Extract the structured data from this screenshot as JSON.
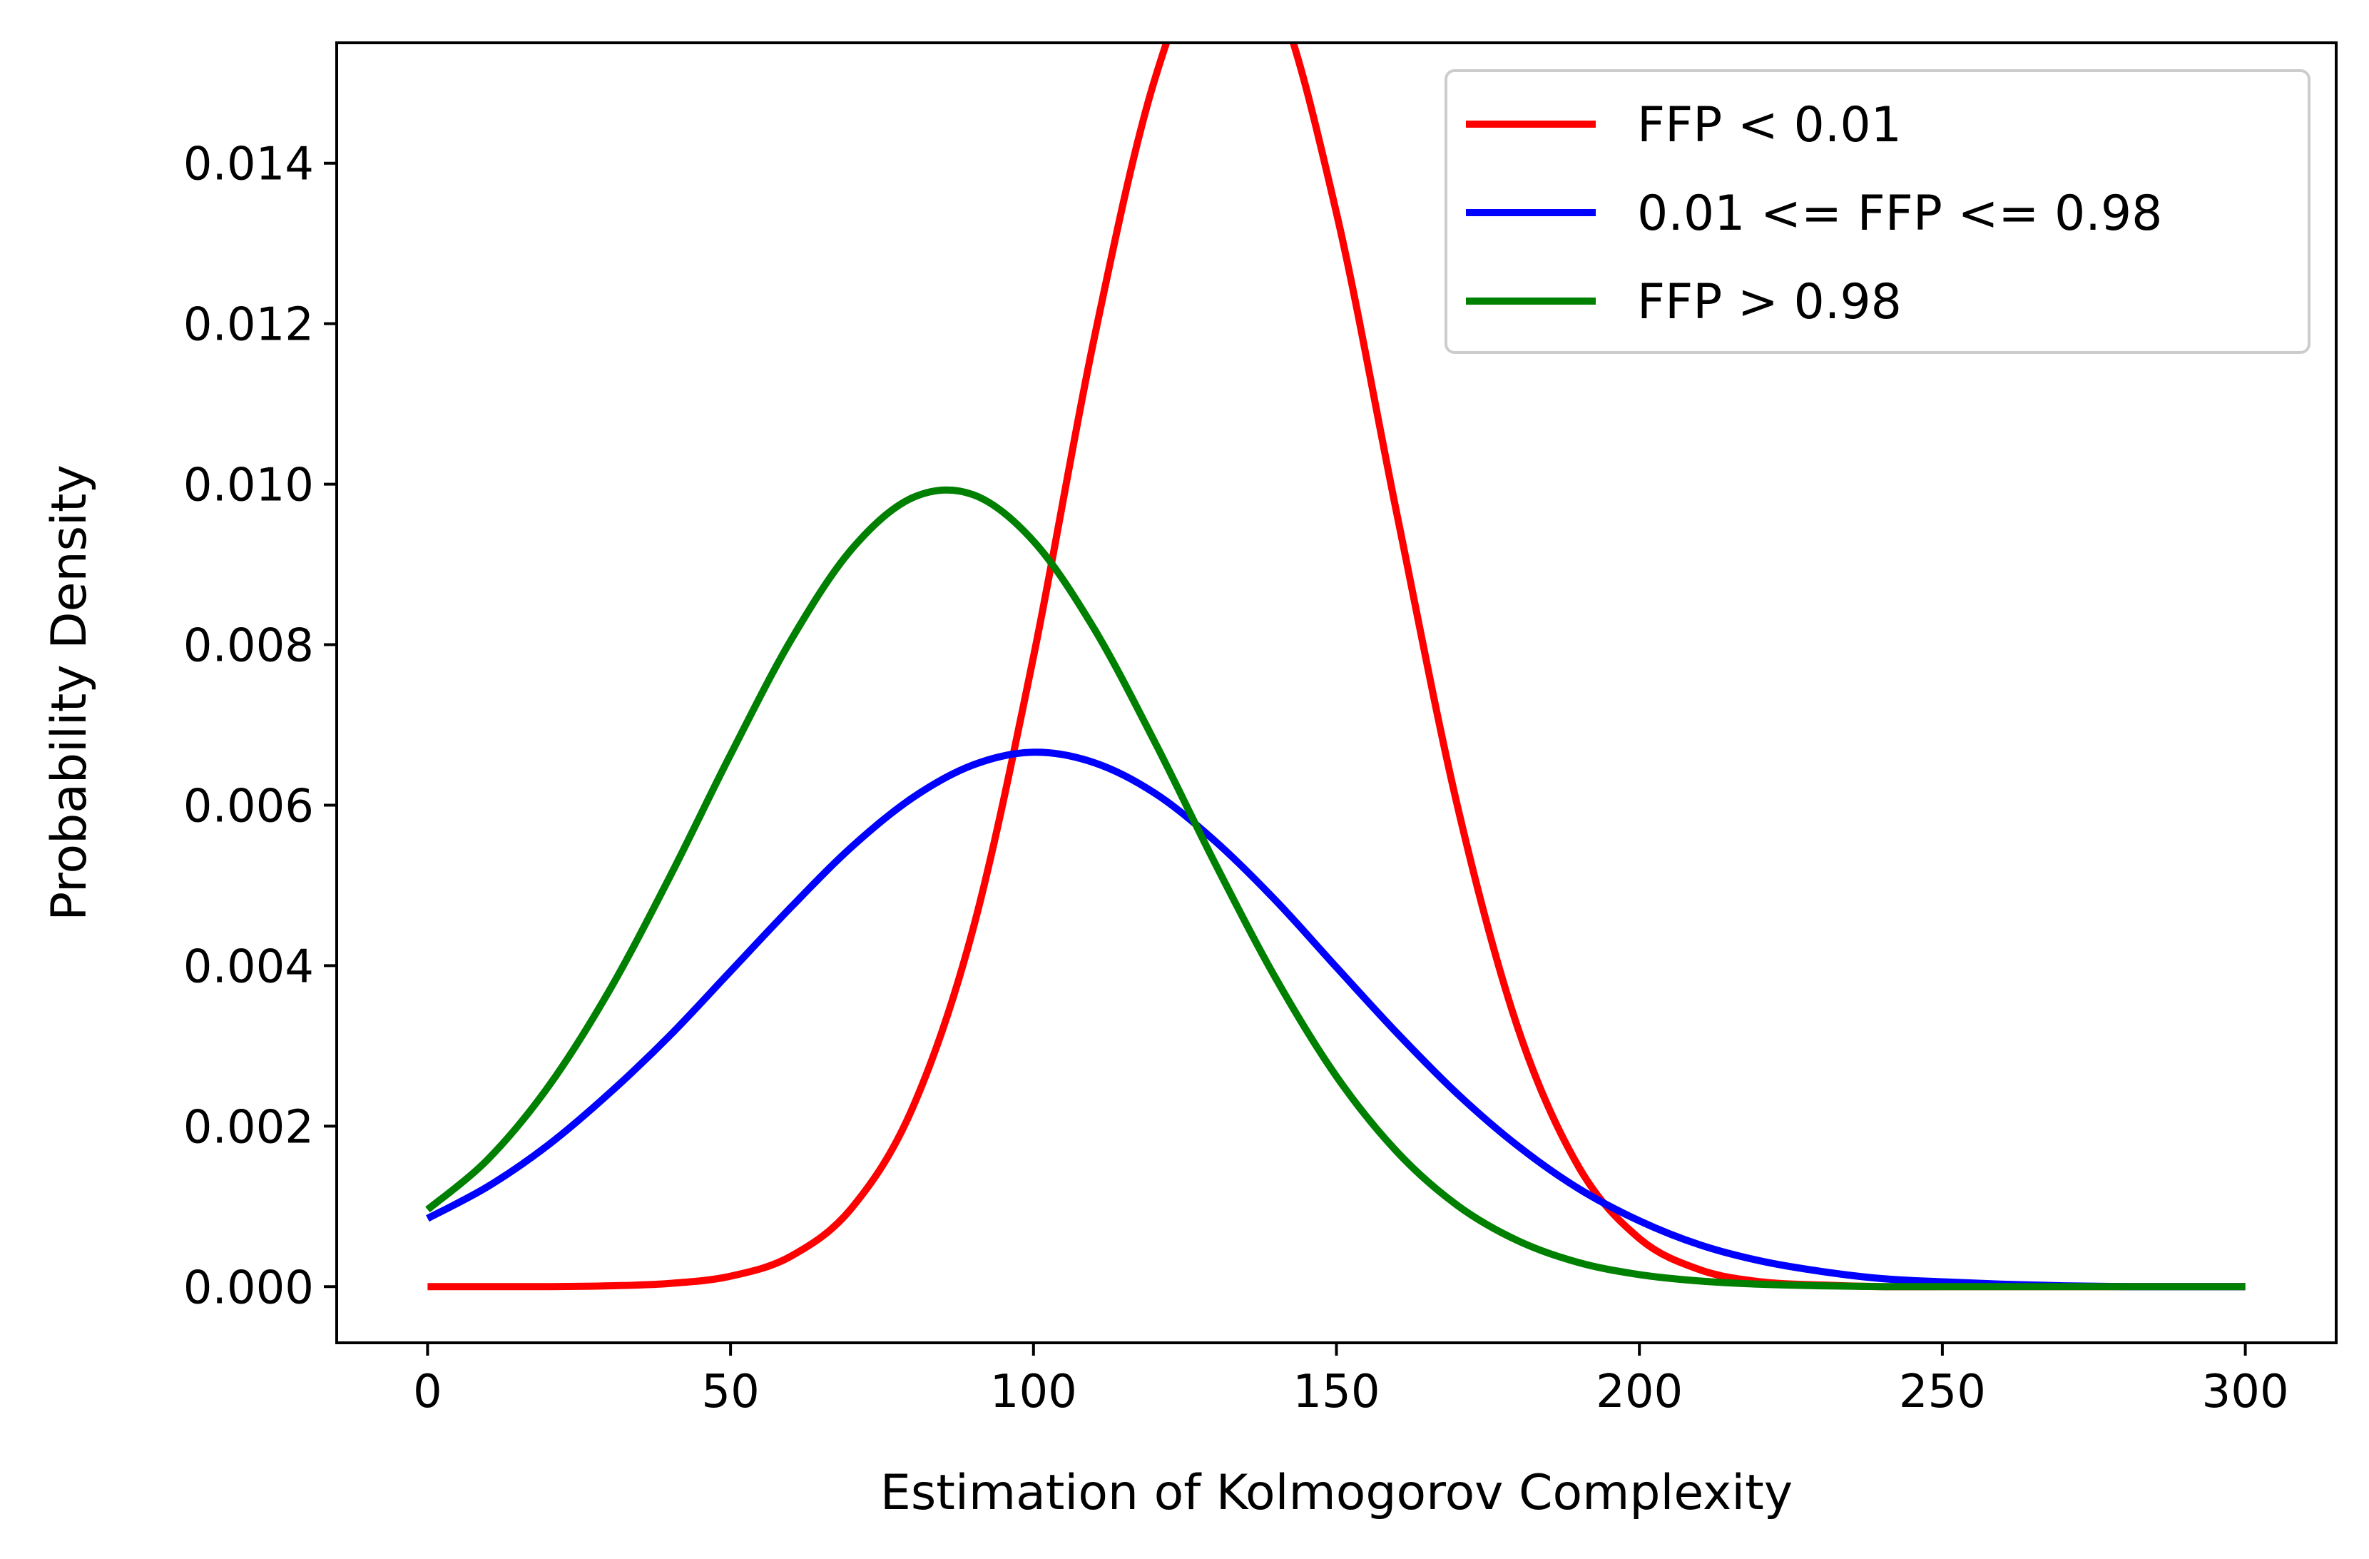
{
  "chart_data": {
    "type": "line",
    "title": "",
    "xlabel": "Estimation of Kolmogorov Complexity",
    "ylabel": "Probability Density",
    "xlim": [
      -15,
      315
    ],
    "ylim": [
      -0.0007,
      0.0155
    ],
    "x_ticks": [
      0,
      50,
      100,
      150,
      200,
      250,
      300
    ],
    "x_tick_labels": [
      "0",
      "50",
      "100",
      "150",
      "200",
      "250",
      "300"
    ],
    "y_ticks": [
      0.0,
      0.002,
      0.004,
      0.006,
      0.008,
      0.01,
      0.012,
      0.014
    ],
    "y_tick_labels": [
      "0.000",
      "0.002",
      "0.004",
      "0.006",
      "0.008",
      "0.010",
      "0.012",
      "0.014"
    ],
    "grid": false,
    "legend_position": "upper right",
    "x": [
      0,
      10,
      20,
      30,
      40,
      50,
      60,
      70,
      80,
      90,
      100,
      110,
      120,
      130,
      140,
      150,
      160,
      170,
      180,
      190,
      200,
      210,
      220,
      230,
      240,
      250,
      260,
      270,
      280,
      290,
      300
    ],
    "series": [
      {
        "name": "FFP < 0.01",
        "color": "#ff0000",
        "values": [
          0.0,
          0.0,
          0.0,
          1e-05,
          4e-05,
          0.00013,
          0.00038,
          0.00098,
          0.00222,
          0.00445,
          0.00785,
          0.01181,
          0.01504,
          0.01673,
          0.0161,
          0.01338,
          0.00962,
          0.00598,
          0.00321,
          0.00149,
          0.0006,
          0.00021,
          6e-05,
          2e-05,
          0.0,
          0.0,
          0.0,
          0.0,
          0.0,
          0.0,
          0.0
        ]
      },
      {
        "name": "0.01 <= FFP <= 0.98",
        "color": "#0000ff",
        "values": [
          0.00085,
          0.00125,
          0.00177,
          0.00241,
          0.00313,
          0.00393,
          0.00473,
          0.00548,
          0.00609,
          0.0065,
          0.00666,
          0.00653,
          0.00615,
          0.00555,
          0.00481,
          0.00398,
          0.00316,
          0.0024,
          0.00175,
          0.00122,
          0.00082,
          0.00052,
          0.00032,
          0.00019,
          0.0001,
          6e-05,
          3e-05,
          1e-05,
          0.0,
          0.0,
          0.0
        ]
      },
      {
        "name": "FFP > 0.98",
        "color": "#008000",
        "values": [
          0.00096,
          0.00159,
          0.0025,
          0.00369,
          0.00511,
          0.00663,
          0.00806,
          0.00919,
          0.00983,
          0.00987,
          0.00929,
          0.0082,
          0.00679,
          0.00527,
          0.00384,
          0.00262,
          0.00168,
          0.00101,
          0.00057,
          0.0003,
          0.00015,
          7e-05,
          3e-05,
          1e-05,
          0.0,
          0.0,
          0.0,
          0.0,
          0.0,
          0.0,
          0.0
        ]
      }
    ]
  }
}
